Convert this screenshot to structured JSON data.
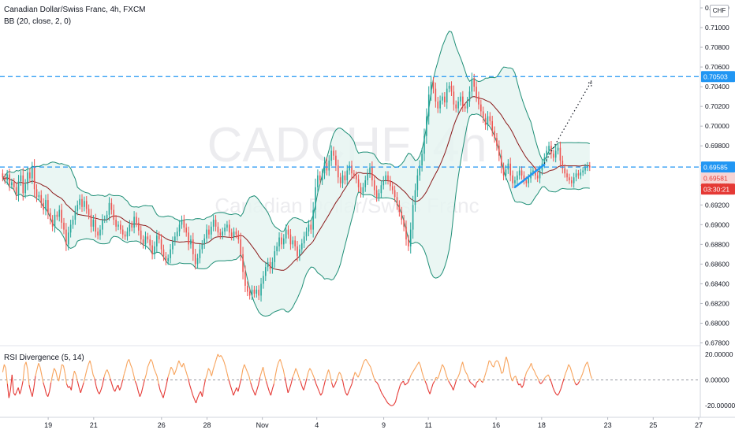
{
  "header": {
    "symbol_title": "Canadian Dollar/Swiss Franc, 4h, FXCM",
    "indicator_bb": "BB (20, close, 2, 0)",
    "indicator_rsi": "RSI Divergence (5, 14)",
    "currency_button": "CHF"
  },
  "watermark": {
    "ticker": "CADCHF, 4h",
    "name": "Canadian Dollar/Swiss Franc"
  },
  "colors": {
    "up": "#26a69a",
    "down": "#ef5350",
    "basis": "#8b1a1a",
    "band": "#1f8f77",
    "band_fill": "#e6f5f1",
    "levels": "#2196f3",
    "rsi_pos": "#f7a35c",
    "rsi_neg": "#e53935",
    "price_tag_dark": "#e53935"
  },
  "chart_data": [
    {
      "type": "candlestick",
      "title": "Canadian Dollar/Swiss Franc, 4h, FXCM",
      "indicator": "BB (20, close, 2, 0)",
      "ylim": [
        0.6778,
        0.7128
      ],
      "xlim": [
        -0.15,
        39.0
      ],
      "y_ticks": [
        "0.67800",
        "0.68000",
        "0.68200",
        "0.68400",
        "0.68600",
        "0.68800",
        "0.69000",
        "0.69200",
        "0.69400",
        "0.69600",
        "0.69800",
        "0.70000",
        "0.70200",
        "0.70400",
        "0.70600",
        "0.70800",
        "0.71000",
        "0.71200"
      ],
      "x_ticks": [
        {
          "pos": 2.55,
          "label": "19"
        },
        {
          "pos": 5.1,
          "label": "21"
        },
        {
          "pos": 8.9,
          "label": "26"
        },
        {
          "pos": 11.45,
          "label": "28"
        },
        {
          "pos": 14.55,
          "label": "Nov"
        },
        {
          "pos": 17.6,
          "label": "4"
        },
        {
          "pos": 21.35,
          "label": "9"
        },
        {
          "pos": 23.85,
          "label": "11"
        },
        {
          "pos": 27.65,
          "label": "16"
        },
        {
          "pos": 30.2,
          "label": "18"
        },
        {
          "pos": 33.9,
          "label": "23"
        },
        {
          "pos": 36.45,
          "label": "25"
        },
        {
          "pos": 39.0,
          "label": "27"
        }
      ],
      "candle_spacing": 0.127,
      "closes": [
        0.6948,
        0.6945,
        0.6951,
        0.694,
        0.6943,
        0.6938,
        0.693,
        0.6944,
        0.695,
        0.6932,
        0.6941,
        0.6953,
        0.6947,
        0.6958,
        0.6936,
        0.6928,
        0.693,
        0.6922,
        0.6915,
        0.6925,
        0.6912,
        0.6905,
        0.6898,
        0.691,
        0.6908,
        0.6915,
        0.6902,
        0.6895,
        0.688,
        0.6892,
        0.69,
        0.6905,
        0.6914,
        0.692,
        0.6926,
        0.6918,
        0.6924,
        0.6916,
        0.691,
        0.6898,
        0.6905,
        0.6893,
        0.6889,
        0.6895,
        0.6905,
        0.6906,
        0.691,
        0.6922,
        0.6915,
        0.6905,
        0.6898,
        0.69,
        0.6895,
        0.689,
        0.6888,
        0.6893,
        0.69,
        0.6897,
        0.6908,
        0.6902,
        0.6894,
        0.6885,
        0.688,
        0.6888,
        0.6885,
        0.6879,
        0.687,
        0.6878,
        0.6889,
        0.6885,
        0.6875,
        0.6868,
        0.6863,
        0.6866,
        0.6875,
        0.6883,
        0.6888,
        0.6893,
        0.69,
        0.6905,
        0.6897,
        0.6892,
        0.688,
        0.6885,
        0.687,
        0.686,
        0.6866,
        0.6875,
        0.688,
        0.6886,
        0.6895,
        0.689,
        0.6898,
        0.6905,
        0.6898,
        0.6892,
        0.6889,
        0.6893,
        0.6897,
        0.69,
        0.6892,
        0.6888,
        0.6893,
        0.689,
        0.6885,
        0.687,
        0.6852,
        0.6838,
        0.6832,
        0.6828,
        0.6834,
        0.683,
        0.6834,
        0.6828,
        0.684,
        0.6848,
        0.6857,
        0.6862,
        0.6855,
        0.6862,
        0.6873,
        0.6878,
        0.6887,
        0.688,
        0.6886,
        0.6895,
        0.689,
        0.688,
        0.6884,
        0.6878,
        0.6868,
        0.6875,
        0.6881,
        0.6888,
        0.6893,
        0.69,
        0.6895,
        0.6915,
        0.6938,
        0.695,
        0.6945,
        0.6952,
        0.6963,
        0.6955,
        0.6965,
        0.6975,
        0.697,
        0.696,
        0.6948,
        0.6942,
        0.695,
        0.6945,
        0.6955,
        0.696,
        0.6952,
        0.695,
        0.6946,
        0.6938,
        0.6932,
        0.6938,
        0.6945,
        0.6952,
        0.6958,
        0.6945,
        0.6935,
        0.6928,
        0.6932,
        0.694,
        0.6945,
        0.695,
        0.6945,
        0.6939,
        0.6935,
        0.6928,
        0.692,
        0.6913,
        0.6905,
        0.6898,
        0.6885,
        0.6878,
        0.6895,
        0.692,
        0.6935,
        0.695,
        0.696,
        0.6972,
        0.699,
        0.701,
        0.7032,
        0.7045,
        0.7038,
        0.7025,
        0.7018,
        0.7026,
        0.703,
        0.7024,
        0.7038,
        0.7041,
        0.7035,
        0.7022,
        0.7018,
        0.7025,
        0.703,
        0.702,
        0.7018,
        0.7025,
        0.7035,
        0.7048,
        0.704,
        0.703,
        0.7022,
        0.7015,
        0.7008,
        0.7001,
        0.701,
        0.7005,
        0.6995,
        0.6988,
        0.698,
        0.697,
        0.6958,
        0.695,
        0.6956,
        0.6962,
        0.695,
        0.6942,
        0.6945,
        0.695,
        0.6955,
        0.695,
        0.6945,
        0.6942,
        0.6947,
        0.6953,
        0.6955,
        0.695,
        0.6947,
        0.6955,
        0.6962,
        0.6968,
        0.6975,
        0.698,
        0.6972,
        0.6968,
        0.6975,
        0.6978,
        0.6965,
        0.6957,
        0.6952,
        0.6948,
        0.6945,
        0.6942,
        0.6948,
        0.6952,
        0.695,
        0.6953,
        0.6955,
        0.6958,
        0.696,
        0.6958
      ],
      "overlay_lines": [
        {
          "name": "0.69585",
          "y": 0.69585,
          "style": "dashed"
        },
        {
          "name": "0.70503",
          "y": 0.70503,
          "style": "dashed"
        }
      ],
      "trendline": {
        "from": [
          28.7,
          0.6938
        ],
        "to": [
          30.35,
          0.6961
        ]
      },
      "projection": {
        "from": [
          30.35,
          0.6962
        ],
        "to": [
          33.0,
          0.7046
        ],
        "style": "dotted-arrow"
      },
      "price_tags": [
        "0.70503",
        "0.69585",
        "0.69581",
        "03:30:21"
      ]
    },
    {
      "type": "line",
      "title": "RSI Divergence (5, 14)",
      "ylim": [
        -26,
        26
      ],
      "y_ticks": [
        "20.00000",
        "0.00000",
        "-20.00000"
      ],
      "zero_line": 0,
      "values": [
        6,
        12,
        9,
        -3,
        -14,
        -8,
        4,
        -10,
        -12,
        -9,
        -6,
        -11,
        -7,
        -1,
        11,
        14,
        8,
        -4,
        -9,
        -13,
        -6,
        3,
        8,
        13,
        10,
        4,
        -2,
        -6,
        -11,
        -13,
        -9,
        -2,
        4,
        9,
        7,
        2,
        -1,
        6,
        12,
        11,
        5,
        -3,
        -6,
        -5,
        -8,
        1,
        7,
        4,
        -1,
        -6,
        -10,
        -6,
        -2,
        3,
        8,
        12,
        15,
        10,
        4,
        1,
        -5,
        -9,
        -11,
        -8,
        -4,
        2,
        6,
        8,
        5,
        1,
        -3,
        -7,
        -9,
        -6,
        -4,
        -8,
        -5,
        0,
        5,
        9,
        14,
        16,
        12,
        9,
        4,
        -1,
        -4,
        -9,
        -13,
        -10,
        -5,
        0,
        4,
        10,
        13,
        16,
        14,
        9,
        6,
        3,
        -3,
        -8,
        -11,
        -14,
        -9,
        -4,
        2,
        6,
        10,
        8,
        4,
        7,
        11,
        15,
        12,
        10,
        13,
        9,
        5,
        1,
        -4,
        -8,
        -12,
        -15,
        -18,
        -14,
        -11,
        -9,
        -13,
        -6,
        0,
        4,
        9,
        7,
        3,
        8,
        12,
        16,
        20,
        18,
        19,
        17,
        14,
        10,
        5,
        0,
        -4,
        -8,
        -12,
        -9,
        -6,
        -9,
        -4,
        1,
        8,
        12,
        9,
        6,
        3,
        -2,
        -6,
        -9,
        -12,
        -8,
        -4,
        2,
        6,
        10,
        4,
        -1,
        -5,
        -9,
        -12,
        -7,
        -3,
        4,
        10,
        14,
        16,
        12,
        8,
        2,
        -4,
        -10,
        -7,
        -3,
        2,
        5,
        9,
        6,
        2,
        -1,
        -5,
        -8,
        -4,
        1,
        6,
        9,
        7,
        4,
        1,
        -3,
        -6,
        -9,
        -12,
        -10,
        -5,
        0,
        4,
        8,
        4,
        -2,
        -6,
        -4,
        -1,
        3,
        6,
        4,
        0,
        -6,
        -10,
        -12,
        -9,
        -6,
        -3,
        2,
        6,
        4,
        2,
        5,
        8,
        12,
        15,
        16,
        14,
        12,
        10,
        6,
        2,
        -1,
        -2,
        -4,
        -7,
        -10,
        -12,
        -14,
        -16,
        -18,
        -19,
        -20,
        -20,
        -19,
        -17,
        -12,
        -8,
        -4,
        -2,
        -1,
        -4,
        -3,
        -2,
        1,
        4,
        6,
        8,
        10,
        12,
        14,
        11,
        6,
        2,
        -1,
        -4,
        -8,
        -11,
        -7,
        -3,
        -1,
        2,
        1,
        4,
        8,
        12,
        10,
        6,
        2,
        -1,
        -3,
        -5,
        -8,
        -4,
        0,
        2,
        5,
        10,
        14,
        9,
        6,
        4,
        0,
        -2,
        -3,
        -4,
        -6,
        -2,
        -1,
        1,
        -1,
        -2,
        2,
        6,
        10,
        15,
        14,
        11,
        10,
        14,
        15,
        14,
        10,
        5,
        6,
        13,
        18,
        14,
        8,
        2,
        -1,
        2,
        3,
        -1,
        -4,
        -3,
        -6,
        -4,
        2,
        6,
        8,
        10,
        13,
        9,
        7,
        4,
        2,
        -1,
        -3,
        -2,
        0,
        2,
        3,
        4,
        1,
        -2,
        -6,
        -9,
        -11,
        -12,
        -10,
        -7,
        -3,
        1,
        5,
        8,
        12,
        10,
        6,
        2,
        -2,
        -4,
        -3,
        -1,
        2,
        5,
        9,
        12,
        14,
        10,
        4,
        1
      ]
    }
  ],
  "annotations": {
    "level_high": "0.70503",
    "level_mid": "0.69585",
    "last_price": "0.69581",
    "countdown": "03:30:21"
  }
}
